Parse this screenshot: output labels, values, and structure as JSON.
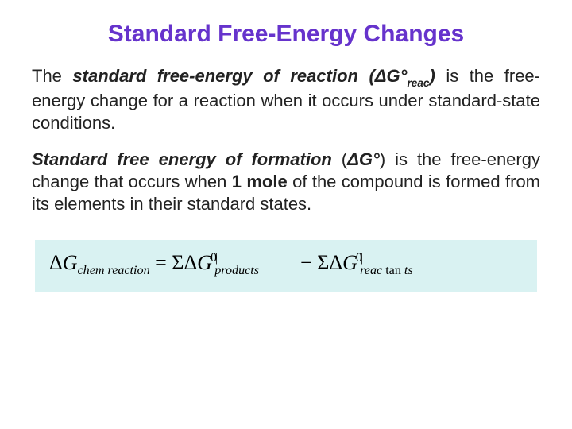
{
  "title": "Standard Free-Energy Changes",
  "title_color": "#6633cc",
  "title_fontsize": 30,
  "body_fontsize": 22,
  "body_color": "#222222",
  "background": "#ffffff",
  "paragraphs": {
    "p1": {
      "lead": "The ",
      "term": "standard free-energy of reaction (ΔG°",
      "term_sub": "reac",
      "term_close": ")",
      "tail": " is the free-energy change for a reaction when it occurs under standard-state conditions."
    },
    "p2": {
      "term": "Standard free energy of formation",
      "paren": " (",
      "symbol": "ΔG°",
      "paren_close": ") ",
      "mid": "is the free-energy change that occurs when ",
      "mole": "1 mole",
      "tail": " of the compound is formed from its elements in their standard states."
    }
  },
  "equation": {
    "box_bg": "#d9f2f2",
    "font": "Times New Roman",
    "fontsize": 26,
    "delta": "Δ",
    "G": "G",
    "lhs_sub": "chem reaction",
    "equals": "=",
    "sigma": "Σ",
    "sup_mark": "0|",
    "rhs1_sub": "products",
    "minus": "−",
    "rhs2_sub_a": "reac",
    "rhs2_sub_b": "tan",
    "rhs2_sub_c": "ts"
  }
}
